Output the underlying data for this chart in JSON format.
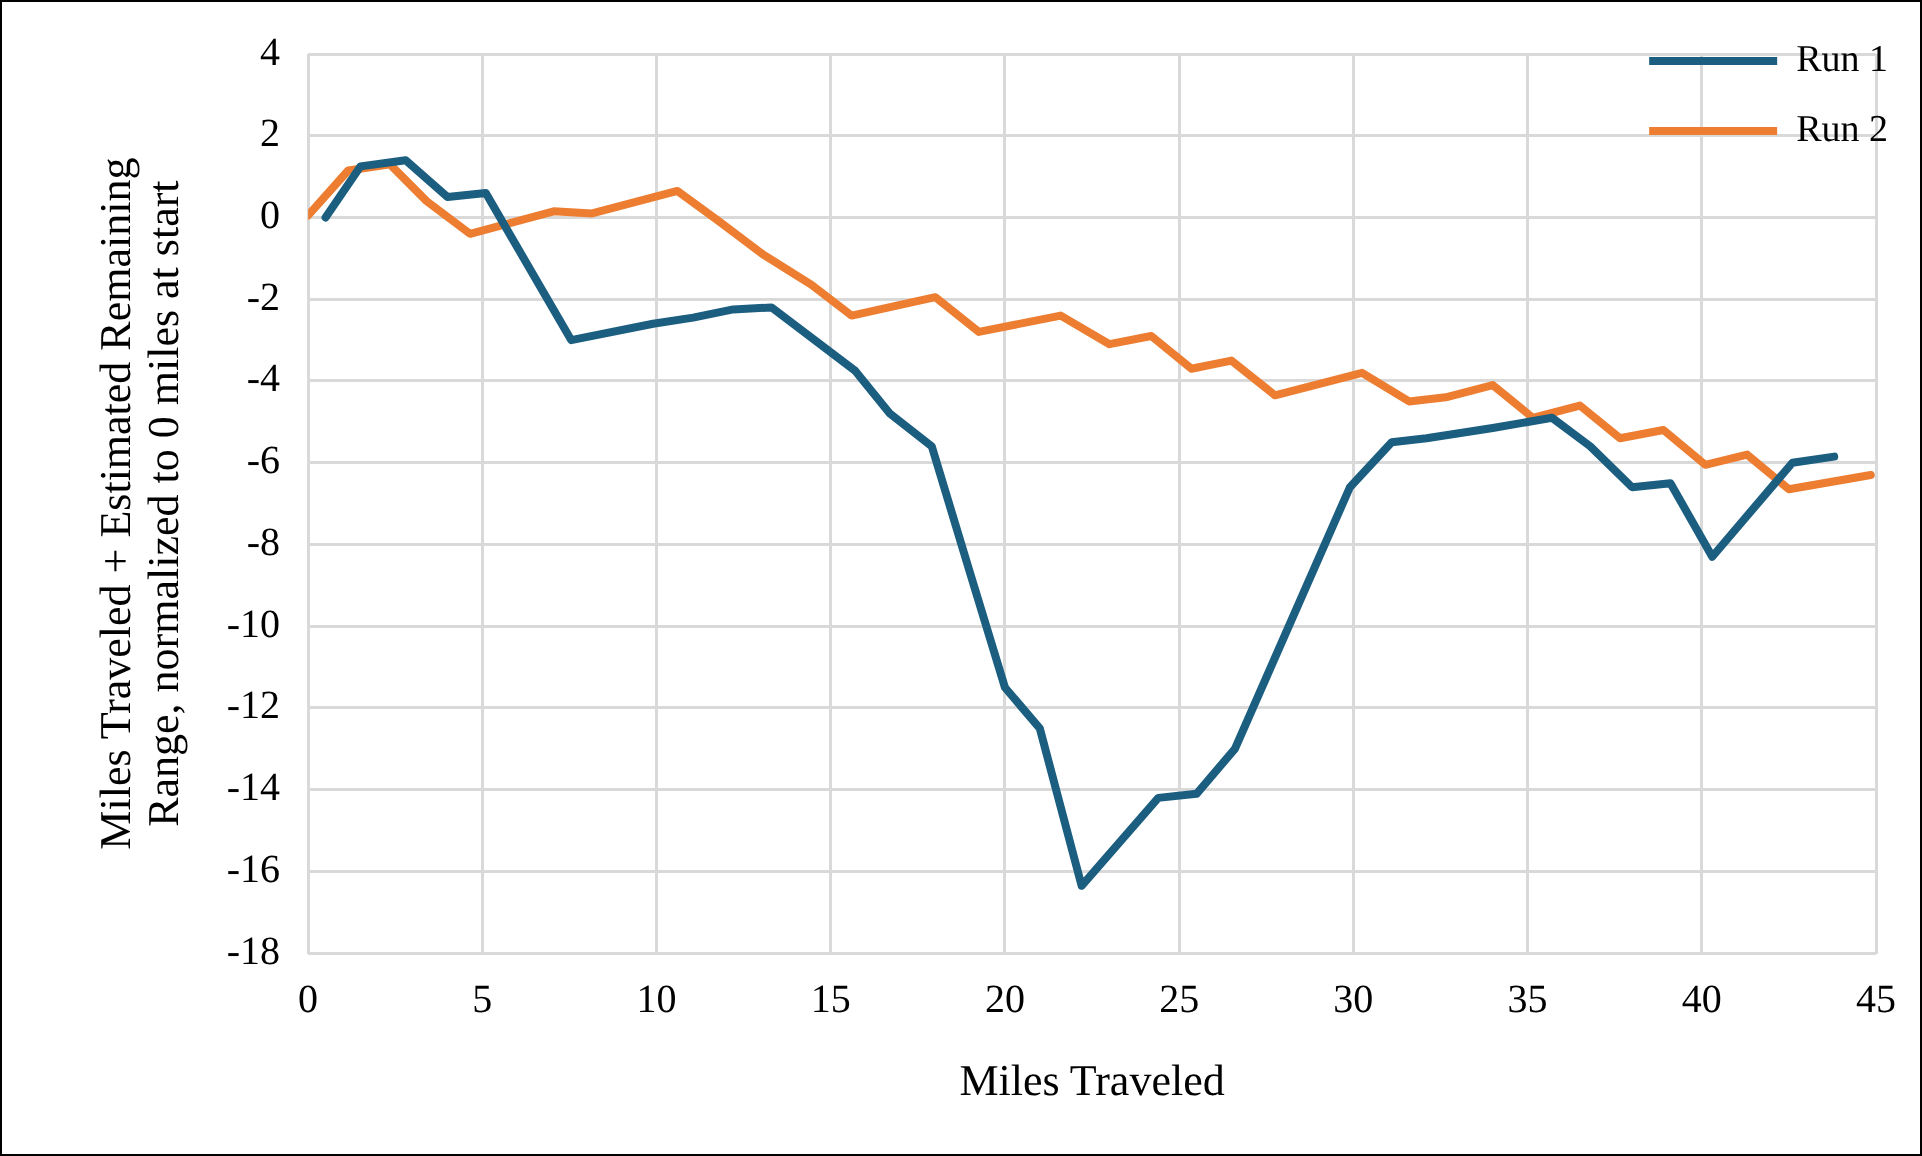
{
  "chart_data": {
    "type": "line",
    "xlabel": "Miles Traveled",
    "ylabel": "Miles Traveled + Estimated Remaining Range, normalized to 0 miles at start",
    "xlim": [
      0,
      45
    ],
    "xticks": [
      0,
      5,
      10,
      15,
      20,
      25,
      30,
      35,
      40,
      45
    ],
    "ylim": [
      -18,
      4
    ],
    "yticks": [
      -18,
      -16,
      -14,
      -12,
      -10,
      -8,
      -6,
      -4,
      -2,
      0,
      2,
      4
    ],
    "grid": true,
    "legend": "top right",
    "marker": "none",
    "line_style": "solid",
    "series": [
      {
        "name": "Run 1",
        "color": "#1b5e80",
        "x": [
          0.5,
          1.5,
          2.8,
          4.0,
          5.1,
          7.55,
          9.9,
          11.05,
          12.2,
          13.3,
          15.7,
          16.7,
          17.9,
          19.0,
          20.0,
          21.0,
          22.2,
          24.4,
          25.5,
          26.6,
          29.9,
          31.1,
          32.1,
          34.0,
          35.7,
          36.8,
          38.0,
          39.1,
          40.3,
          42.6,
          43.8
        ],
        "values": [
          0,
          1.25,
          1.4,
          0.5,
          0.6,
          -3.0,
          -2.6,
          -2.45,
          -2.25,
          -2.2,
          -3.75,
          -4.8,
          -5.6,
          -8.7,
          -11.5,
          -12.5,
          -16.35,
          -14.2,
          -14.1,
          -13.0,
          -6.6,
          -5.5,
          -5.4,
          -5.15,
          -4.9,
          -5.6,
          -6.6,
          -6.5,
          -8.3,
          -6.0,
          -5.85
        ]
      },
      {
        "name": "Run 2",
        "color": "#ed7d31",
        "x": [
          0,
          1.15,
          2.35,
          3.4,
          4.65,
          7.05,
          8.15,
          10.6,
          11.8,
          13.05,
          14.45,
          15.6,
          18.0,
          19.25,
          21.6,
          23.0,
          24.2,
          25.35,
          26.5,
          27.75,
          30.25,
          31.6,
          32.65,
          34.0,
          35.15,
          36.5,
          37.65,
          38.9,
          40.1,
          41.3,
          42.5,
          44.85
        ],
        "values": [
          0.05,
          1.15,
          1.3,
          0.4,
          -0.4,
          0.15,
          0.1,
          0.65,
          -0.1,
          -0.9,
          -1.65,
          -2.4,
          -1.95,
          -2.8,
          -2.4,
          -3.1,
          -2.9,
          -3.7,
          -3.5,
          -4.35,
          -3.8,
          -4.5,
          -4.4,
          -4.1,
          -4.9,
          -4.6,
          -5.4,
          -5.2,
          -6.05,
          -5.8,
          -6.65,
          -6.3
        ]
      }
    ]
  }
}
